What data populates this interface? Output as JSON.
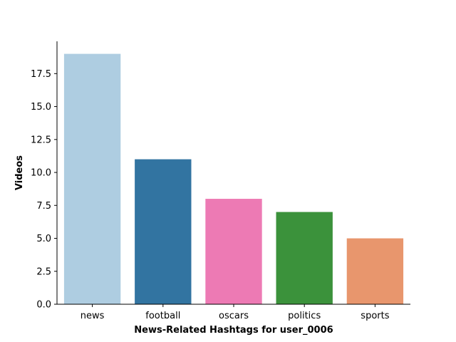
{
  "chart_data": {
    "type": "bar",
    "title": "",
    "xlabel": "News-Related Hashtags for user_0006",
    "ylabel": "Videos",
    "categories": [
      "news",
      "football",
      "oscars",
      "politics",
      "sports"
    ],
    "values": [
      19,
      11,
      8,
      7,
      5
    ],
    "colors": [
      "#aecde1",
      "#3274a1",
      "#ed7ab4",
      "#3b923b",
      "#e8966d"
    ],
    "ylim": [
      0,
      19.95
    ],
    "yticks": [
      0.0,
      2.5,
      5.0,
      7.5,
      10.0,
      12.5,
      15.0,
      17.5
    ],
    "ytick_labels": [
      "0.0",
      "2.5",
      "5.0",
      "7.5",
      "10.0",
      "12.5",
      "15.0",
      "17.5"
    ],
    "grid": false,
    "legend": "none",
    "spines": "left-bottom"
  }
}
